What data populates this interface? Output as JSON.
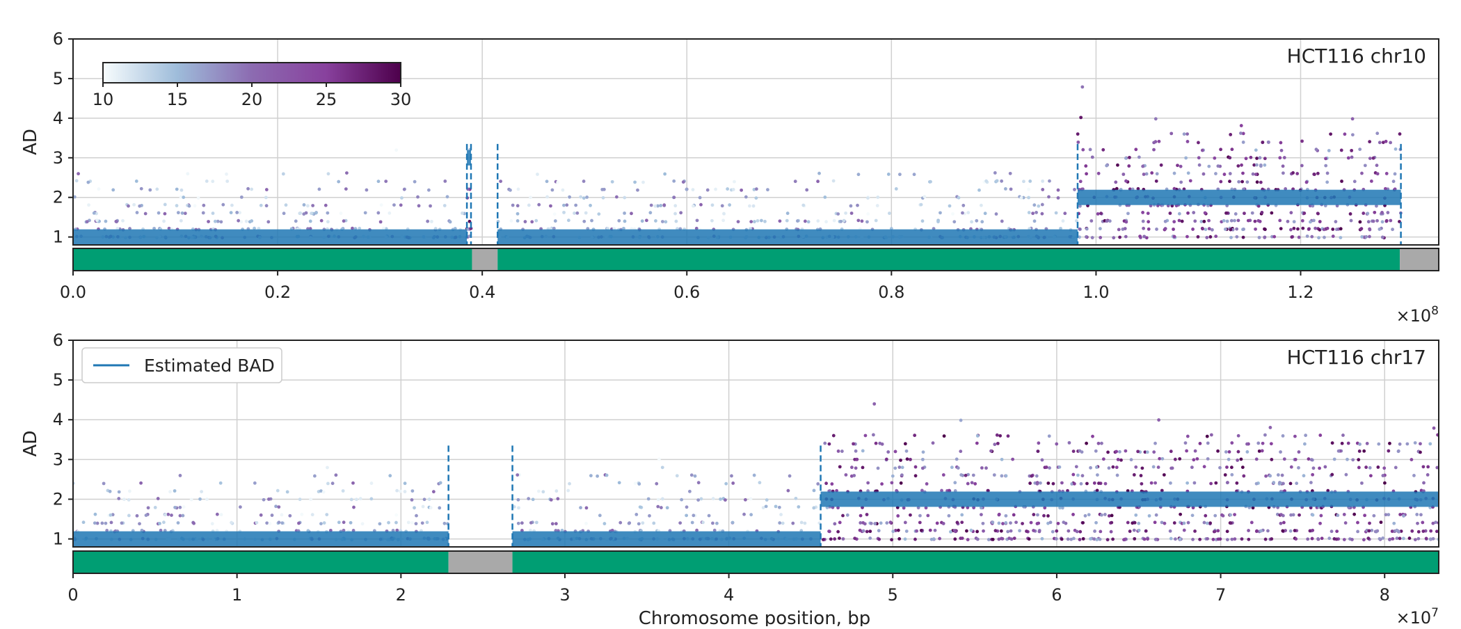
{
  "chart_data": [
    {
      "type": "scatter",
      "title": "HCT116 chr10",
      "ylabel": "AD",
      "xlabel": "",
      "xlim": [
        0,
        1.335
      ],
      "ylim": [
        0.8,
        6
      ],
      "x_ticks": [
        "0.0",
        "0.2",
        "0.4",
        "0.6",
        "0.8",
        "1.0",
        "1.2"
      ],
      "x_tick_values": [
        0.0,
        0.2,
        0.4,
        0.6,
        0.8,
        1.0,
        1.2
      ],
      "x_multiplier": "×10",
      "x_multiplier_exp": "8",
      "y_ticks": [
        "1",
        "2",
        "3",
        "4",
        "5",
        "6"
      ],
      "y_tick_values": [
        1,
        2,
        3,
        4,
        5,
        6
      ],
      "grid": true,
      "colorbar": {
        "ticks": [
          "10",
          "15",
          "20",
          "25",
          "30"
        ],
        "tick_values": [
          10,
          15,
          20,
          25,
          30
        ],
        "range": [
          10,
          30
        ],
        "colors": [
          "#f7fcfd",
          "#9ebcda",
          "#8c6bb1",
          "#88419d",
          "#4d004b"
        ]
      },
      "bad_segments": [
        {
          "x_start": 0.0,
          "x_end": 0.385,
          "value": 1,
          "label": "Estimated BAD"
        },
        {
          "x_start": 0.385,
          "x_end": 0.389,
          "value": 3
        },
        {
          "x_start": 0.415,
          "x_end": 0.982,
          "value": 1
        },
        {
          "x_start": 0.982,
          "x_end": 1.298,
          "value": 2
        }
      ],
      "boundaries": [
        0.385,
        0.389,
        0.415,
        0.982,
        1.298
      ],
      "segment_bar": [
        {
          "x_start": 0.0,
          "x_end": 0.39,
          "color": "#009e73"
        },
        {
          "x_start": 0.39,
          "x_end": 0.415,
          "color": "#a9a9a9"
        },
        {
          "x_start": 0.415,
          "x_end": 1.297,
          "color": "#009e73"
        },
        {
          "x_start": 1.297,
          "x_end": 1.335,
          "color": "#a9a9a9"
        }
      ]
    },
    {
      "type": "scatter",
      "title": "HCT116 chr17",
      "ylabel": "AD",
      "xlabel": "Chromosome position, bp",
      "xlim": [
        0,
        8.33
      ],
      "ylim": [
        0.8,
        6
      ],
      "x_ticks": [
        "0",
        "1",
        "2",
        "3",
        "4",
        "5",
        "6",
        "7",
        "8"
      ],
      "x_tick_values": [
        0,
        1,
        2,
        3,
        4,
        5,
        6,
        7,
        8
      ],
      "x_multiplier": "×10",
      "x_multiplier_exp": "7",
      "y_ticks": [
        "1",
        "2",
        "3",
        "4",
        "5",
        "6"
      ],
      "y_tick_values": [
        1,
        2,
        3,
        4,
        5,
        6
      ],
      "grid": true,
      "legend": {
        "entries": [
          "Estimated BAD"
        ],
        "placement": "top-left"
      },
      "bad_segments": [
        {
          "x_start": 0.0,
          "x_end": 2.29,
          "value": 1,
          "label": "Estimated BAD"
        },
        {
          "x_start": 2.68,
          "x_end": 4.56,
          "value": 1
        },
        {
          "x_start": 4.56,
          "x_end": 8.33,
          "value": 2
        }
      ],
      "boundaries": [
        2.29,
        2.68,
        4.56
      ],
      "segment_bar": [
        {
          "x_start": 0.0,
          "x_end": 2.29,
          "color": "#009e73"
        },
        {
          "x_start": 2.29,
          "x_end": 2.68,
          "color": "#a9a9a9"
        },
        {
          "x_start": 2.68,
          "x_end": 8.33,
          "color": "#009e73"
        }
      ]
    }
  ],
  "colors": {
    "bad_line": "#1f77b4",
    "boundary": "#1f77b4",
    "grid": "#d0d0d0",
    "frame": "#222222"
  }
}
